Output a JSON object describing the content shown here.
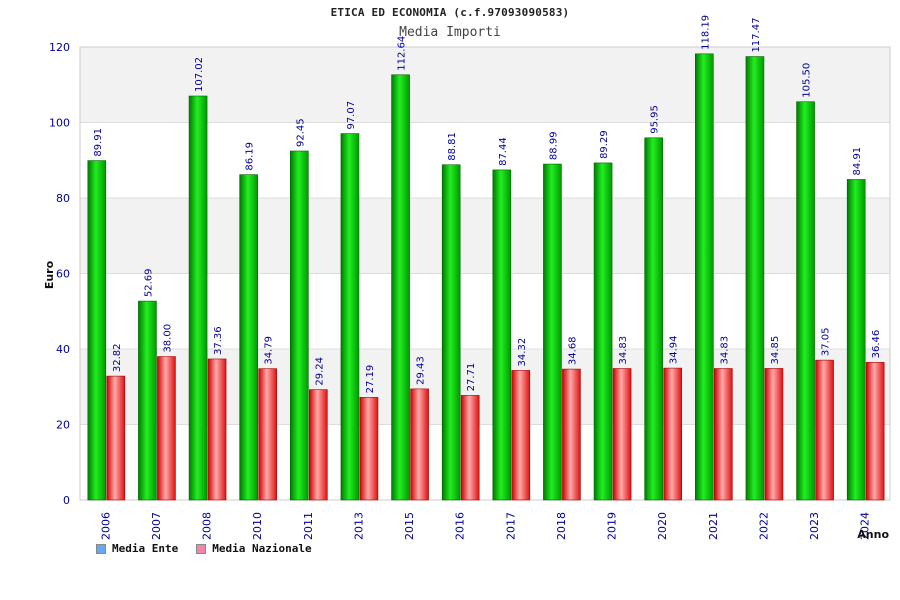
{
  "chart_data": {
    "type": "bar",
    "title": "ETICA ED ECONOMIA (c.f.97093090583)",
    "subtitle": "Media Importi",
    "xlabel": "Anno",
    "ylabel": "Euro",
    "ylim": [
      0,
      120
    ],
    "yticks": [
      0,
      20,
      40,
      60,
      80,
      100,
      120
    ],
    "categories": [
      "2006",
      "2007",
      "2008",
      "2010",
      "2011",
      "2013",
      "2015",
      "2016",
      "2017",
      "2018",
      "2019",
      "2020",
      "2021",
      "2022",
      "2023",
      "2024"
    ],
    "series": [
      {
        "name": "Media Ente",
        "color": "#00bb00",
        "values": [
          89.91,
          52.69,
          107.02,
          86.19,
          92.45,
          97.07,
          112.64,
          88.81,
          87.44,
          88.99,
          89.29,
          95.95,
          118.19,
          117.47,
          105.5,
          84.91
        ],
        "labels": [
          "89.91",
          "52.69",
          "107.02",
          "86.19",
          "92.45",
          "97.07",
          "112.64",
          "88.81",
          "87.44",
          "88.99",
          "89.29",
          "95.95",
          "118.19",
          "117.47",
          "105.50",
          "84.91"
        ]
      },
      {
        "name": "Media Nazionale",
        "color": "#ee2222",
        "values": [
          32.82,
          38.0,
          37.36,
          34.79,
          29.24,
          27.19,
          29.43,
          27.71,
          34.32,
          34.68,
          34.83,
          34.94,
          34.83,
          34.85,
          37.05,
          36.46
        ],
        "labels": [
          "32.82",
          "38.00",
          "37.36",
          "34.79",
          "29.24",
          "27.19",
          "29.43",
          "27.71",
          "34.32",
          "34.68",
          "34.83",
          "34.94",
          "34.83",
          "34.85",
          "37.05",
          "36.46"
        ]
      }
    ],
    "legend": [
      {
        "name": "Media Ente",
        "color": "#66aaee"
      },
      {
        "name": "Media Nazionale",
        "color": "#ee88aa"
      }
    ],
    "legend_position": "bottom-left",
    "grid": true,
    "background_bands": [
      "#f2f2f2",
      "#ffffff"
    ]
  }
}
